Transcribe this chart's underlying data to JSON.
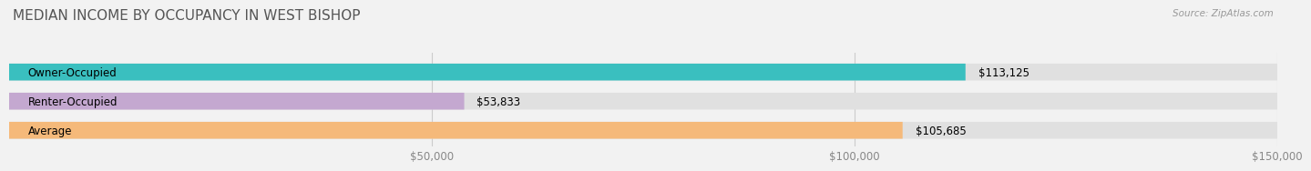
{
  "title": "MEDIAN INCOME BY OCCUPANCY IN WEST BISHOP",
  "source": "Source: ZipAtlas.com",
  "categories": [
    "Owner-Occupied",
    "Renter-Occupied",
    "Average"
  ],
  "values": [
    113125,
    53833,
    105685
  ],
  "bar_colors": [
    "#3abfbf",
    "#c4a8d0",
    "#f5b97a"
  ],
  "bar_labels": [
    "$113,125",
    "$53,833",
    "$105,685"
  ],
  "xlim": [
    0,
    150000
  ],
  "xticks": [
    50000,
    100000,
    150000
  ],
  "xticklabels": [
    "$50,000",
    "$100,000",
    "$150,000"
  ],
  "background_color": "#f2f2f2",
  "bar_bg_color": "#e0e0e0",
  "title_fontsize": 11,
  "label_fontsize": 8.5,
  "bar_height": 0.58
}
